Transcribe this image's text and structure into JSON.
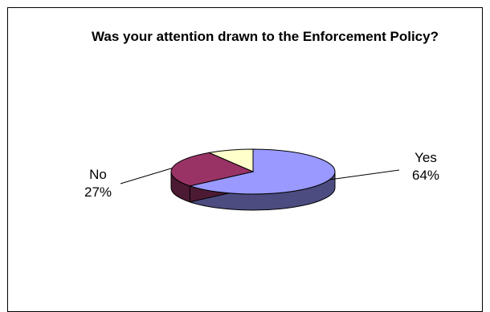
{
  "chart_data": {
    "type": "pie",
    "title": "Was your attention drawn to the Enforcement Policy?",
    "slices": [
      {
        "label": "Yes",
        "value": 64,
        "value_label": "64%",
        "color": "#9999ff",
        "side_color": "#4c4c80"
      },
      {
        "label": "No",
        "value": 27,
        "value_label": "27%",
        "color": "#993366",
        "side_color": "#4c1a33"
      },
      {
        "label": "",
        "value": 9,
        "value_label": "",
        "color": "#ffffcc",
        "side_color": "#808066"
      }
    ],
    "style": "3d",
    "legend": "none"
  }
}
